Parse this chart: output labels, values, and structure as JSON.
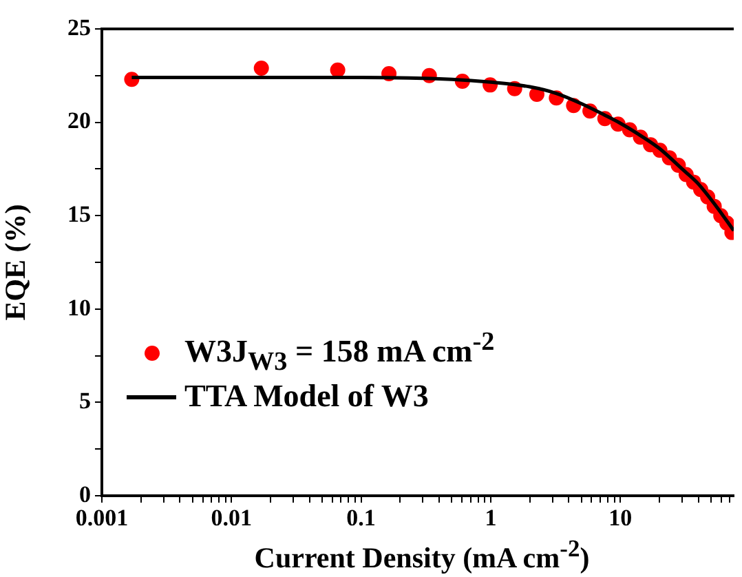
{
  "chart_data": {
    "type": "scatter",
    "xlabel": "Current Density (mA cm$^{-2}$)",
    "ylabel": "EQE (%)",
    "log": "x",
    "grid": false,
    "legend": "bottom left",
    "marker": "circle",
    "xlim": [
      0.001,
      75
    ],
    "ylim": [
      0,
      25
    ],
    "xticks": [
      0.001,
      {
        "value": 0.002,
        "label": null
      },
      {
        "value": 0.003,
        "label": null
      },
      {
        "value": 0.004,
        "label": null
      },
      {
        "value": 0.005,
        "label": null
      },
      {
        "value": 0.006,
        "label": null
      },
      {
        "value": 0.007,
        "label": null
      },
      {
        "value": 0.008,
        "label": null
      },
      {
        "value": 0.009,
        "label": null
      },
      0.01,
      {
        "value": 0.02,
        "label": null
      },
      {
        "value": 0.03,
        "label": null
      },
      {
        "value": 0.04,
        "label": null
      },
      {
        "value": 0.05,
        "label": null
      },
      {
        "value": 0.06,
        "label": null
      },
      {
        "value": 0.07,
        "label": null
      },
      {
        "value": 0.08,
        "label": null
      },
      {
        "value": 0.09,
        "label": null
      },
      0.1,
      {
        "value": 0.2,
        "label": null
      },
      {
        "value": 0.3,
        "label": null
      },
      {
        "value": 0.4,
        "label": null
      },
      {
        "value": 0.5,
        "label": null
      },
      {
        "value": 0.6,
        "label": null
      },
      {
        "value": 0.7,
        "label": null
      },
      {
        "value": 0.8,
        "label": null
      },
      {
        "value": 0.9,
        "label": null
      },
      1,
      {
        "value": 2,
        "label": null
      },
      {
        "value": 3,
        "label": null
      },
      {
        "value": 4,
        "label": null
      },
      {
        "value": 5,
        "label": null
      },
      {
        "value": 6,
        "label": null
      },
      {
        "value": 7,
        "label": null
      },
      {
        "value": 8,
        "label": null
      },
      {
        "value": 9,
        "label": null
      },
      10,
      {
        "value": 20,
        "label": null
      },
      {
        "value": 30,
        "label": null
      },
      {
        "value": 40,
        "label": null
      },
      {
        "value": 50,
        "label": null
      },
      {
        "value": 60,
        "label": null
      },
      {
        "value": 70,
        "label": null
      }
    ],
    "yticks": [
      0,
      {
        "value": 2.5,
        "label": null
      },
      5,
      {
        "value": 7.5,
        "label": null
      },
      10,
      {
        "value": 12.5,
        "label": null
      },
      15,
      {
        "value": 17.5,
        "label": null
      },
      20,
      {
        "value": 22.5,
        "label": null
      },
      25
    ],
    "series": [
      {
        "name": "W3J$_{W3}$ = 158 mA cm$^{-2}$",
        "type": "scatter",
        "color": "#ff0000",
        "x": [
          0.0017,
          0.017,
          0.066,
          0.164,
          0.336,
          0.605,
          0.99,
          1.53,
          2.27,
          3.21,
          4.36,
          5.83,
          7.6,
          9.6,
          11.8,
          14.3,
          17.1,
          20.2,
          23.9,
          28.0,
          32.2,
          36.8,
          41.7,
          47.2,
          53,
          59.6,
          66.4,
          72.6
        ],
        "values": [
          22.3,
          22.9,
          22.8,
          22.6,
          22.5,
          22.2,
          22.0,
          21.8,
          21.5,
          21.3,
          20.9,
          20.6,
          20.2,
          19.9,
          19.6,
          19.2,
          18.8,
          18.5,
          18.1,
          17.7,
          17.2,
          16.8,
          16.4,
          16.0,
          15.5,
          15.0,
          14.6,
          14.1
        ]
      },
      {
        "name": "TTA Model of W3",
        "type": "line",
        "marker": "none",
        "line_style": "solid",
        "color": "#000000",
        "x": [
          0.0017,
          0.1,
          0.5,
          1,
          2,
          3.2,
          5,
          7.5,
          10,
          15,
          20,
          30,
          40,
          55,
          75
        ],
        "values": [
          22.4,
          22.4,
          22.3,
          22.15,
          21.9,
          21.55,
          21.0,
          20.4,
          19.95,
          19.2,
          18.6,
          17.5,
          16.7,
          15.5,
          14.2
        ]
      }
    ]
  }
}
